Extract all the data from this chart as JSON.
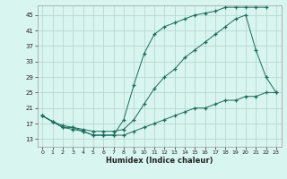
{
  "title": "",
  "xlabel": "Humidex (Indice chaleur)",
  "bg_color": "#d8f5f0",
  "grid_color": "#b8d8d0",
  "line_color": "#1a6b5a",
  "xlim": [
    -0.5,
    23.5
  ],
  "ylim": [
    11,
    47.5
  ],
  "yticks": [
    13,
    17,
    21,
    25,
    29,
    33,
    37,
    41,
    45
  ],
  "xticks": [
    0,
    1,
    2,
    3,
    4,
    5,
    6,
    7,
    8,
    9,
    10,
    11,
    12,
    13,
    14,
    15,
    16,
    17,
    18,
    19,
    20,
    21,
    22,
    23
  ],
  "line1_x": [
    0,
    1,
    2,
    3,
    4,
    5,
    6,
    7,
    8,
    9,
    10,
    11,
    12,
    13,
    14,
    15,
    16,
    17,
    18,
    19,
    20,
    21,
    22
  ],
  "line1_y": [
    19,
    17.5,
    16,
    16,
    15,
    14,
    14,
    14,
    18,
    27,
    35,
    40,
    42,
    43,
    44,
    45,
    45.5,
    46,
    47,
    47,
    47,
    47,
    47
  ],
  "line2_x": [
    0,
    1,
    2,
    3,
    4,
    5,
    6,
    7,
    8,
    9,
    10,
    11,
    12,
    13,
    14,
    15,
    16,
    17,
    18,
    19,
    20,
    21,
    22,
    23
  ],
  "line2_y": [
    19,
    17.5,
    16.5,
    16,
    15.5,
    15,
    15,
    15,
    15.5,
    18,
    22,
    26,
    29,
    31,
    34,
    36,
    38,
    40,
    42,
    44,
    45,
    36,
    29,
    25
  ],
  "line3_x": [
    0,
    1,
    2,
    3,
    4,
    5,
    6,
    7,
    8,
    9,
    10,
    11,
    12,
    13,
    14,
    15,
    16,
    17,
    18,
    19,
    20,
    21,
    22,
    23
  ],
  "line3_y": [
    19,
    17.5,
    16,
    15.5,
    15,
    14,
    14,
    14,
    14,
    15,
    16,
    17,
    18,
    19,
    20,
    21,
    21,
    22,
    23,
    23,
    24,
    24,
    25,
    25
  ]
}
